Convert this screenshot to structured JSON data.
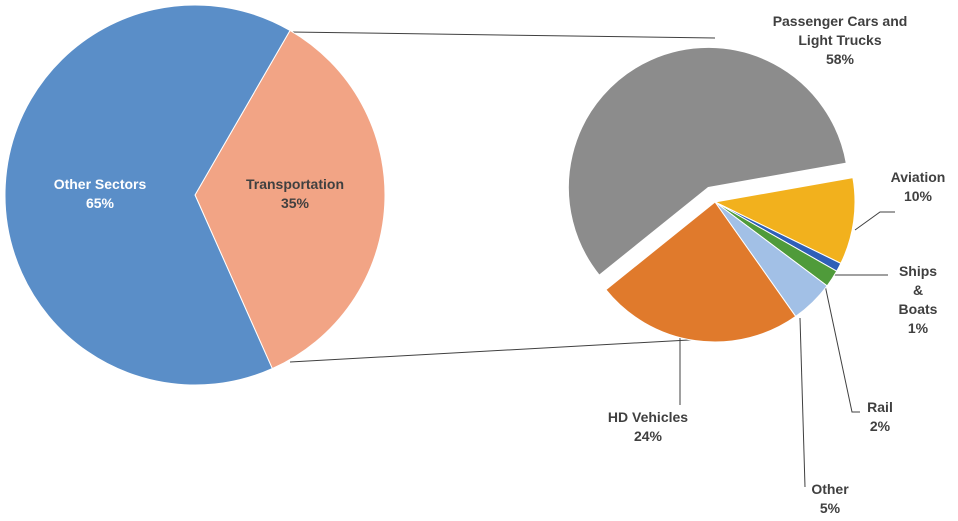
{
  "chart_data": [
    {
      "type": "pie",
      "categories": [
        "Transportation",
        "Other Sectors"
      ],
      "values": [
        35,
        65
      ],
      "value_labels": [
        "35%",
        "65%"
      ],
      "colors": [
        "#f2a485",
        "#5a8ec8"
      ]
    },
    {
      "type": "pie",
      "categories": [
        "Aviation",
        "Ships & Boats",
        "Rail",
        "Other",
        "HD Vehicles",
        "Passenger Cars and Light Trucks"
      ],
      "values": [
        10,
        1,
        2,
        5,
        24,
        58
      ],
      "value_labels": [
        "10%",
        "1%",
        "2%",
        "5%",
        "24%",
        "58%"
      ],
      "colors": [
        "#f2b11d",
        "#2f5fb8",
        "#4f9b3a",
        "#a2c0e6",
        "#e07a2c",
        "#8c8c8c"
      ]
    }
  ]
}
